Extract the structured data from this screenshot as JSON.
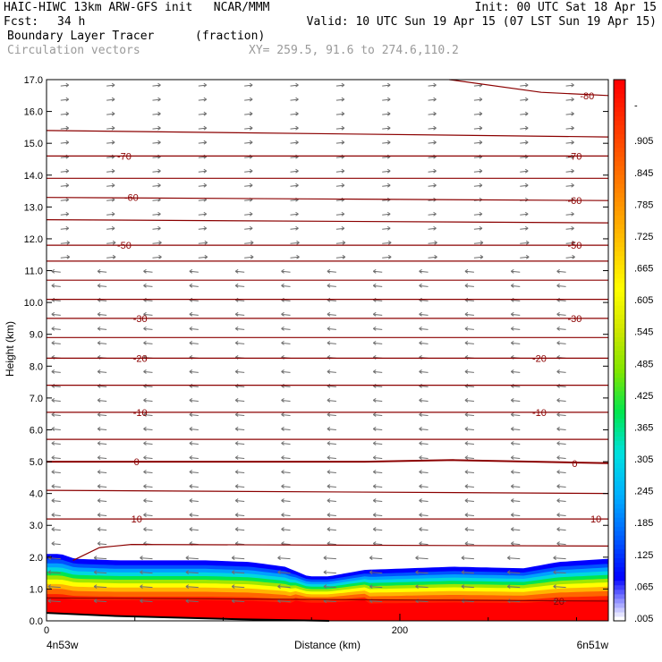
{
  "header": {
    "title": "HAIC-HIWC 13km ARW-GFS init   NCAR/MMM",
    "init": "Init: 00 UTC Sat 18 Apr 15",
    "fcst_label": "Fcst:",
    "fcst_value": "34 h",
    "valid": "Valid: 10 UTC Sun 19 Apr 15 (07 LST Sun 19 Apr 15)",
    "field": "Boundary Layer Tracer",
    "field_units": "(fraction)",
    "vectors": "Circulation vectors",
    "xy": "XY= 259.5, 91.6 to 274.6,110.2"
  },
  "chart_data": {
    "type": "heatmap",
    "title": "Boundary Layer Tracer",
    "xlabel": "Distance (km)",
    "ylabel": "Height (km)",
    "xlim": [
      0,
      318
    ],
    "ylim": [
      0,
      17
    ],
    "x_ticks": [
      {
        "value": 0,
        "label": "0"
      },
      {
        "value": 200,
        "label": "200"
      }
    ],
    "y_ticks": [
      "0.0",
      "1.0",
      "2.0",
      "3.0",
      "4.0",
      "5.0",
      "6.0",
      "7.0",
      "8.0",
      "9.0",
      "10.0",
      "11.0",
      "12.0",
      "13.0",
      "14.0",
      "15.0",
      "16.0",
      "17.0"
    ],
    "endpoint_left": "4n53w",
    "endpoint_right": "6n51w",
    "colorbar": {
      "labels": [
        ".005",
        ".065",
        ".125",
        ".185",
        ".245",
        ".305",
        ".365",
        ".425",
        ".485",
        ".545",
        ".605",
        ".665",
        ".725",
        ".785",
        ".845",
        ".905",
        "-"
      ],
      "colors": [
        "#ffffff",
        "#0000ff",
        "#0050ff",
        "#0096ff",
        "#00c8ff",
        "#00e6c8",
        "#00e650",
        "#50e600",
        "#96e600",
        "#c8e600",
        "#ffff00",
        "#ffd200",
        "#ffaa00",
        "#ff8200",
        "#ff5a00",
        "#ff2800",
        "#ff0000"
      ]
    },
    "tracer_top_km": [
      {
        "x": 0,
        "y": 2.1
      },
      {
        "x": 8,
        "y": 2.1
      },
      {
        "x": 16,
        "y": 1.95
      },
      {
        "x": 40,
        "y": 1.9
      },
      {
        "x": 90,
        "y": 1.9
      },
      {
        "x": 115,
        "y": 1.85
      },
      {
        "x": 135,
        "y": 1.7
      },
      {
        "x": 148,
        "y": 1.4
      },
      {
        "x": 160,
        "y": 1.4
      },
      {
        "x": 180,
        "y": 1.6
      },
      {
        "x": 230,
        "y": 1.7
      },
      {
        "x": 270,
        "y": 1.65
      },
      {
        "x": 290,
        "y": 1.85
      },
      {
        "x": 318,
        "y": 1.95
      }
    ],
    "temperature_contours": [
      {
        "label": "-80",
        "points": [
          [
            228,
            17.0
          ],
          [
            280,
            16.6
          ],
          [
            318,
            16.5
          ]
        ],
        "label_at": [
          [
            306,
            16.5
          ]
        ]
      },
      {
        "label": "",
        "points": [
          [
            0,
            15.4
          ],
          [
            318,
            15.2
          ]
        ],
        "label_at": []
      },
      {
        "label": "-70",
        "points": [
          [
            0,
            14.6
          ],
          [
            318,
            14.6
          ]
        ],
        "label_at": [
          [
            44,
            14.6
          ],
          [
            299,
            14.6
          ]
        ]
      },
      {
        "label": "",
        "points": [
          [
            0,
            13.9
          ],
          [
            318,
            13.9
          ]
        ],
        "label_at": []
      },
      {
        "label": "-60",
        "points": [
          [
            0,
            13.3
          ],
          [
            318,
            13.2
          ]
        ],
        "label_at": [
          [
            48,
            13.3
          ],
          [
            299,
            13.2
          ]
        ]
      },
      {
        "label": "",
        "points": [
          [
            0,
            12.6
          ],
          [
            318,
            12.5
          ]
        ],
        "label_at": []
      },
      {
        "label": "-50",
        "points": [
          [
            0,
            11.8
          ],
          [
            318,
            11.8
          ]
        ],
        "label_at": [
          [
            44,
            11.8
          ],
          [
            299,
            11.8
          ]
        ]
      },
      {
        "label": "",
        "points": [
          [
            0,
            11.3
          ],
          [
            318,
            11.3
          ]
        ],
        "label_at": []
      },
      {
        "label": "",
        "points": [
          [
            0,
            10.7
          ],
          [
            318,
            10.7
          ]
        ],
        "label_at": []
      },
      {
        "label": "",
        "points": [
          [
            0,
            10.1
          ],
          [
            318,
            10.1
          ]
        ],
        "label_at": []
      },
      {
        "label": "-30",
        "points": [
          [
            0,
            9.5
          ],
          [
            318,
            9.5
          ]
        ],
        "label_at": [
          [
            53,
            9.5
          ],
          [
            299,
            9.5
          ]
        ]
      },
      {
        "label": "",
        "points": [
          [
            0,
            8.9
          ],
          [
            318,
            8.9
          ]
        ],
        "label_at": []
      },
      {
        "label": "-20",
        "points": [
          [
            0,
            8.25
          ],
          [
            318,
            8.25
          ]
        ],
        "label_at": [
          [
            53,
            8.25
          ],
          [
            279,
            8.25
          ]
        ]
      },
      {
        "label": "",
        "points": [
          [
            0,
            7.4
          ],
          [
            318,
            7.4
          ]
        ],
        "label_at": []
      },
      {
        "label": "-10",
        "points": [
          [
            0,
            6.55
          ],
          [
            318,
            6.55
          ]
        ],
        "label_at": [
          [
            53,
            6.55
          ],
          [
            279,
            6.55
          ]
        ]
      },
      {
        "label": "",
        "points": [
          [
            0,
            5.7
          ],
          [
            318,
            5.7
          ]
        ],
        "label_at": []
      },
      {
        "label": "0",
        "points": [
          [
            0,
            5.0
          ],
          [
            180,
            5.0
          ],
          [
            230,
            5.05
          ],
          [
            318,
            4.95
          ]
        ],
        "label_at": [
          [
            51,
            5.0
          ],
          [
            299,
            4.95
          ]
        ]
      },
      {
        "label": "",
        "points": [
          [
            0,
            4.1
          ],
          [
            318,
            4.0
          ]
        ],
        "label_at": []
      },
      {
        "label": "10",
        "points": [
          [
            0,
            3.2
          ],
          [
            318,
            3.2
          ]
        ],
        "label_at": [
          [
            51,
            3.2
          ],
          [
            311,
            3.2
          ]
        ]
      },
      {
        "label": "",
        "points": [
          [
            15,
            1.9
          ],
          [
            30,
            2.3
          ],
          [
            48,
            2.4
          ],
          [
            318,
            2.35
          ]
        ],
        "label_at": []
      },
      {
        "label": "20",
        "points": [
          [
            0,
            0.72
          ],
          [
            318,
            0.62
          ]
        ],
        "label_at": [
          [
            290,
            0.62
          ]
        ]
      }
    ]
  }
}
